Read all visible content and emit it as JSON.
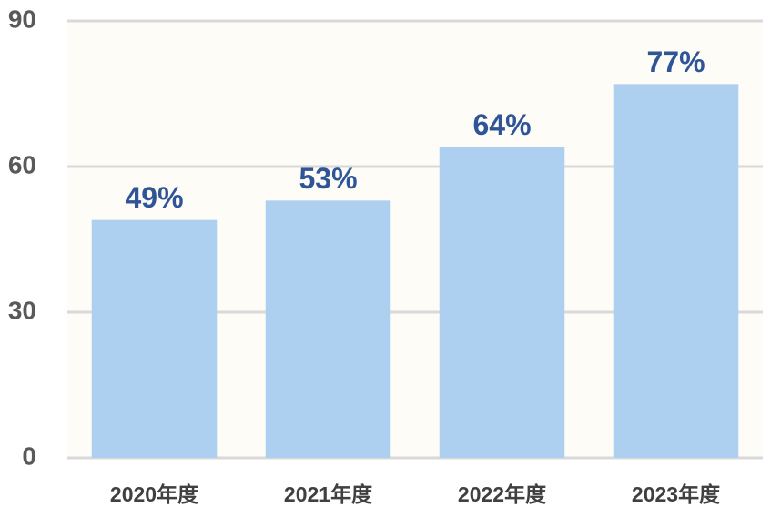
{
  "chart_data": {
    "type": "bar",
    "categories": [
      "2020年度",
      "2021年度",
      "2022年度",
      "2023年度"
    ],
    "values": [
      49,
      53,
      64,
      77
    ],
    "value_labels": [
      "49%",
      "53%",
      "64%",
      "77%"
    ],
    "color": "#aed0f0",
    "ylim": [
      0,
      90
    ],
    "yticks": [
      0,
      30,
      60,
      90
    ],
    "grid": true
  }
}
